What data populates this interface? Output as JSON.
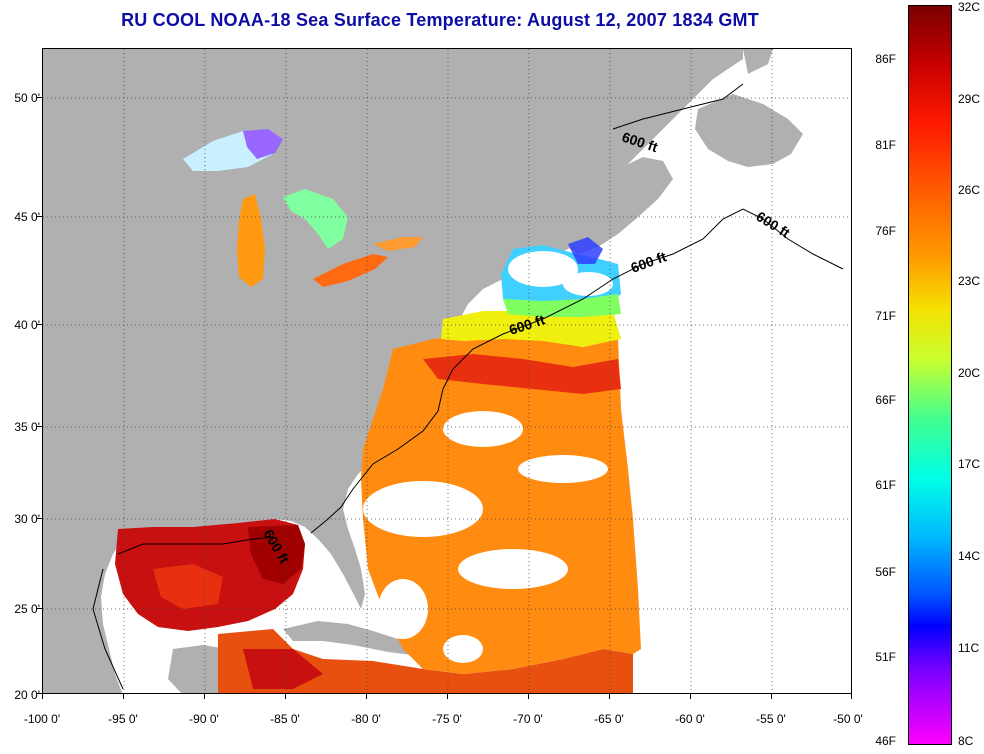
{
  "title": "RU COOL  NOAA-18  Sea Surface Temperature:  August 12, 2007 1834 GMT",
  "latitude_labels": [
    "50 0'",
    "45 0'",
    "40 0'",
    "35 0'",
    "30 0'",
    "25 0'",
    "20 0'"
  ],
  "longitude_labels": [
    "-100 0'",
    "-95 0'",
    "-90 0'",
    "-85 0'",
    "-80 0'",
    "-75 0'",
    "-70 0'",
    "-65 0'",
    "-60 0'",
    "-55 0'",
    "-50 0'"
  ],
  "isobath_labels": [
    "600 ft",
    "600 ft",
    "600 ft",
    "600 ft",
    "600 ft"
  ],
  "colorbar": {
    "fahrenheit_labels": [
      "86F",
      "81F",
      "76F",
      "71F",
      "66F",
      "61F",
      "56F",
      "51F",
      "46F"
    ],
    "celsius_labels": [
      "32C",
      "29C",
      "26C",
      "23C",
      "20C",
      "17C",
      "14C",
      "11C",
      "8C"
    ]
  },
  "colors": {
    "title": "#0d0da6",
    "land": "#b0b0b0",
    "no_data_ocean": "#ffffff",
    "warm": "#e83010",
    "hot": "#c81010",
    "mid": "#ff8c10",
    "cool": "#20d0f0",
    "cold": "#2040ff"
  }
}
